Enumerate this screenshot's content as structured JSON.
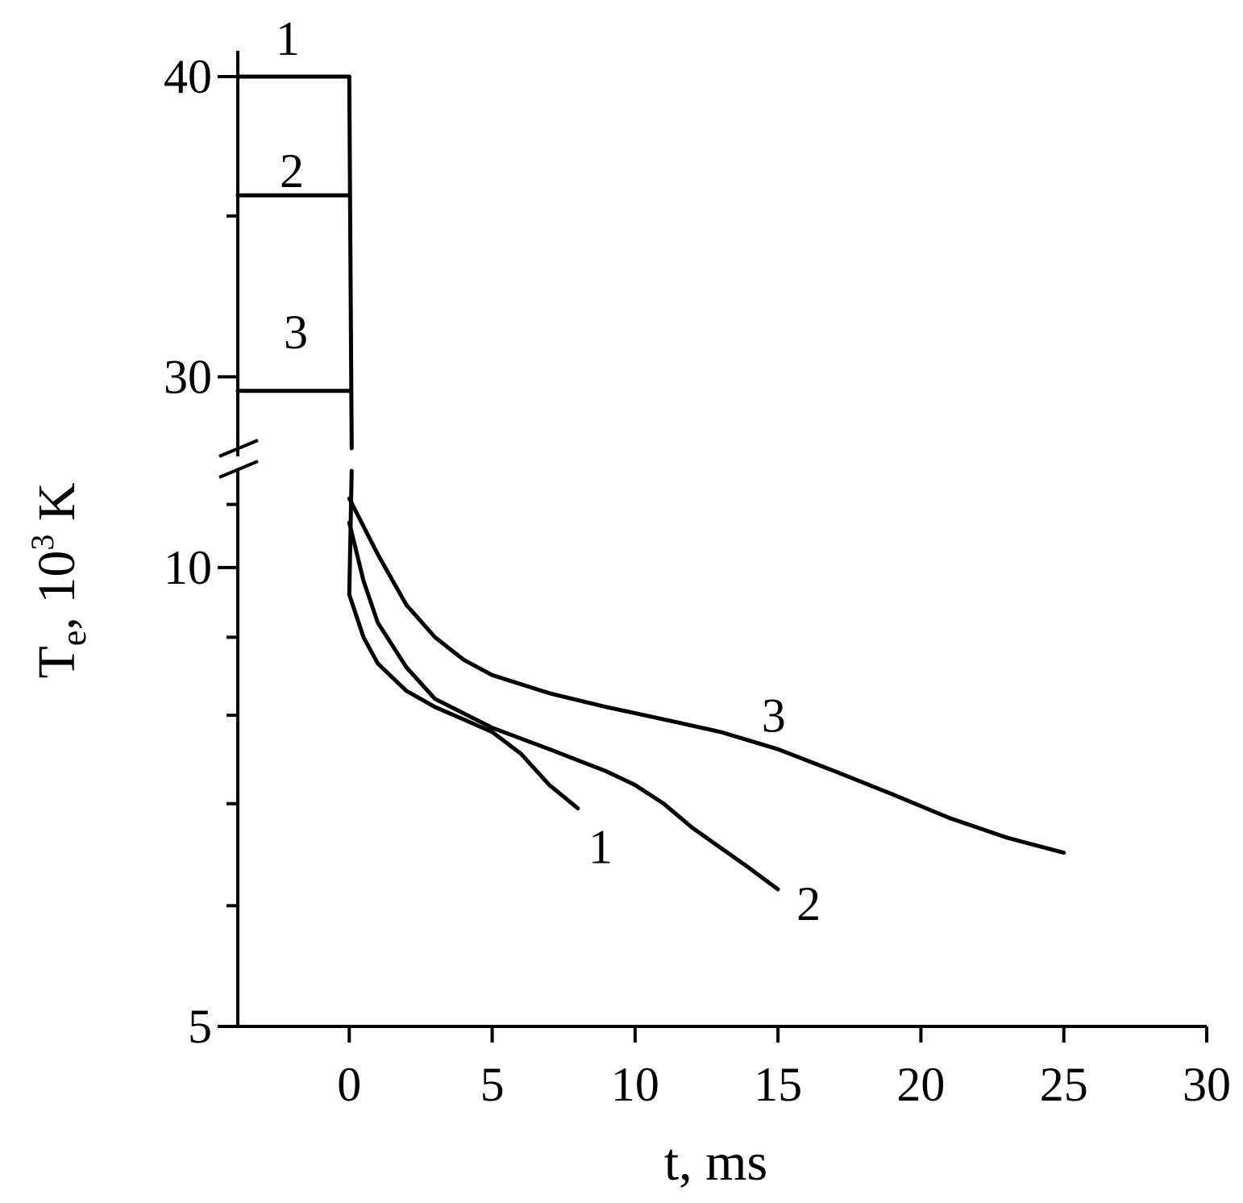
{
  "chart_data": {
    "type": "line",
    "xlabel": "t, ms",
    "ylabel": {
      "main": "T",
      "sub": "e",
      "rest": ", 10",
      "sup": "3",
      "unit": " K"
    },
    "x_ticks": [
      "0",
      "5",
      "10",
      "15",
      "20",
      "25",
      "30"
    ],
    "xlim": [
      -3.9,
      30
    ],
    "y_scale": "log",
    "y_axis_break": true,
    "y_lower_ticks": [
      "5",
      "10"
    ],
    "y_lower_range": [
      5,
      11.6
    ],
    "y_upper_ticks": [
      "30",
      "40"
    ],
    "y_upper_range": [
      27.8,
      41
    ],
    "grid": false,
    "series": [
      {
        "name": "1",
        "initial_T": 40.0,
        "decay": [
          [
            0,
            9.6
          ],
          [
            0.5,
            9.0
          ],
          [
            1,
            8.65
          ],
          [
            2,
            8.3
          ],
          [
            3,
            8.1
          ],
          [
            4,
            7.95
          ],
          [
            5,
            7.8
          ],
          [
            6,
            7.55
          ],
          [
            7,
            7.2
          ],
          [
            8,
            6.95
          ]
        ]
      },
      {
        "name": "2",
        "initial_T": 35.7,
        "decay": [
          [
            0,
            10.7
          ],
          [
            0.5,
            9.8
          ],
          [
            1,
            9.2
          ],
          [
            2,
            8.6
          ],
          [
            3,
            8.2
          ],
          [
            5,
            7.85
          ],
          [
            7,
            7.6
          ],
          [
            9,
            7.35
          ],
          [
            10,
            7.2
          ],
          [
            11,
            7.0
          ],
          [
            12,
            6.75
          ],
          [
            14,
            6.35
          ],
          [
            15,
            6.15
          ]
        ]
      },
      {
        "name": "3",
        "initial_T": 29.6,
        "decay": [
          [
            0,
            11.1
          ],
          [
            1,
            10.2
          ],
          [
            2,
            9.45
          ],
          [
            3,
            9.0
          ],
          [
            4,
            8.7
          ],
          [
            5,
            8.5
          ],
          [
            7,
            8.27
          ],
          [
            9,
            8.1
          ],
          [
            11,
            7.95
          ],
          [
            13,
            7.8
          ],
          [
            15,
            7.6
          ],
          [
            17,
            7.35
          ],
          [
            19,
            7.1
          ],
          [
            21,
            6.85
          ],
          [
            23,
            6.65
          ],
          [
            25,
            6.5
          ]
        ]
      }
    ]
  }
}
